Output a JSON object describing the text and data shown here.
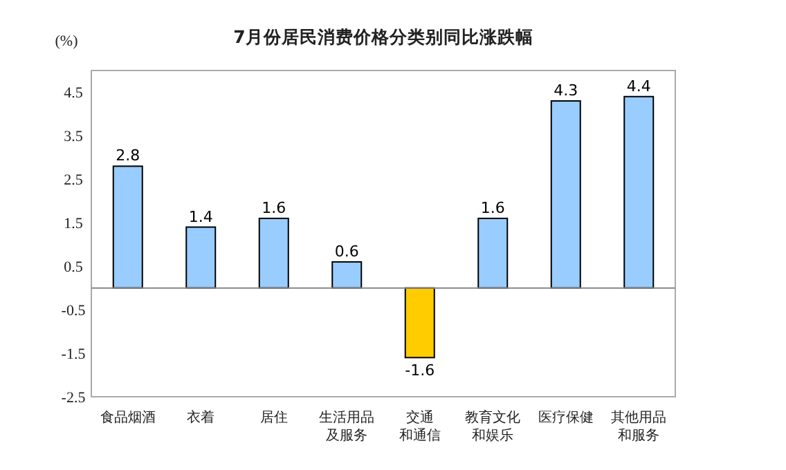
{
  "chart_data": {
    "type": "bar",
    "title": "7月份居民消费价格分类别同比涨跌幅",
    "ylabel": "(%)",
    "categories": [
      "食品烟酒",
      "衣着",
      "居住",
      "生活用品及服务",
      "交通和通信",
      "教育文化和娱乐",
      "医疗保健",
      "其他用品和服务"
    ],
    "values": [
      2.8,
      1.4,
      1.6,
      0.6,
      -1.6,
      1.6,
      4.3,
      4.4
    ],
    "colors": [
      "#99ccff",
      "#99ccff",
      "#99ccff",
      "#99ccff",
      "#ffcc00",
      "#99ccff",
      "#99ccff",
      "#99ccff"
    ],
    "ylim": [
      -2.5,
      5
    ],
    "yticks": [
      -2.5,
      -1.5,
      -0.5,
      0.5,
      1.5,
      2.5,
      3.5,
      4.5
    ],
    "data_labels": true,
    "grid": false
  }
}
